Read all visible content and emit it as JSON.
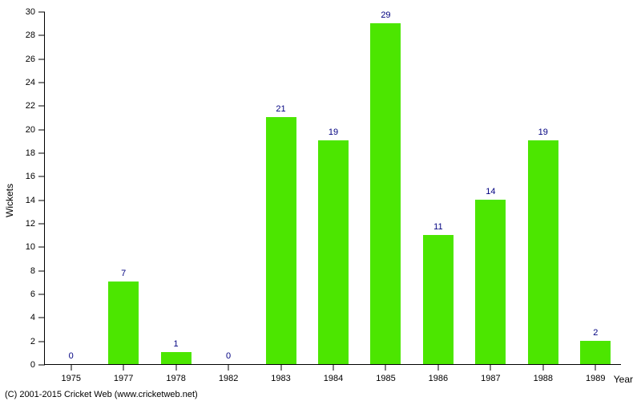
{
  "chart": {
    "type": "bar",
    "categories": [
      "1975",
      "1977",
      "1978",
      "1982",
      "1983",
      "1984",
      "1985",
      "1986",
      "1987",
      "1988",
      "1989"
    ],
    "values": [
      0,
      7,
      1,
      0,
      21,
      19,
      29,
      11,
      14,
      19,
      2
    ],
    "bar_color": "#4ce600",
    "value_label_color": "#000080",
    "ylabel": "Wickets",
    "xlabel": "Year",
    "ylim": [
      0,
      30
    ],
    "ytick_step": 2,
    "bar_width_ratio": 0.58,
    "axis_color": "#000000",
    "background_color": "#ffffff",
    "label_fontsize": 12,
    "tick_fontsize": 11,
    "value_fontsize": 11
  },
  "copyright": "(C) 2001-2015 Cricket Web (www.cricketweb.net)"
}
